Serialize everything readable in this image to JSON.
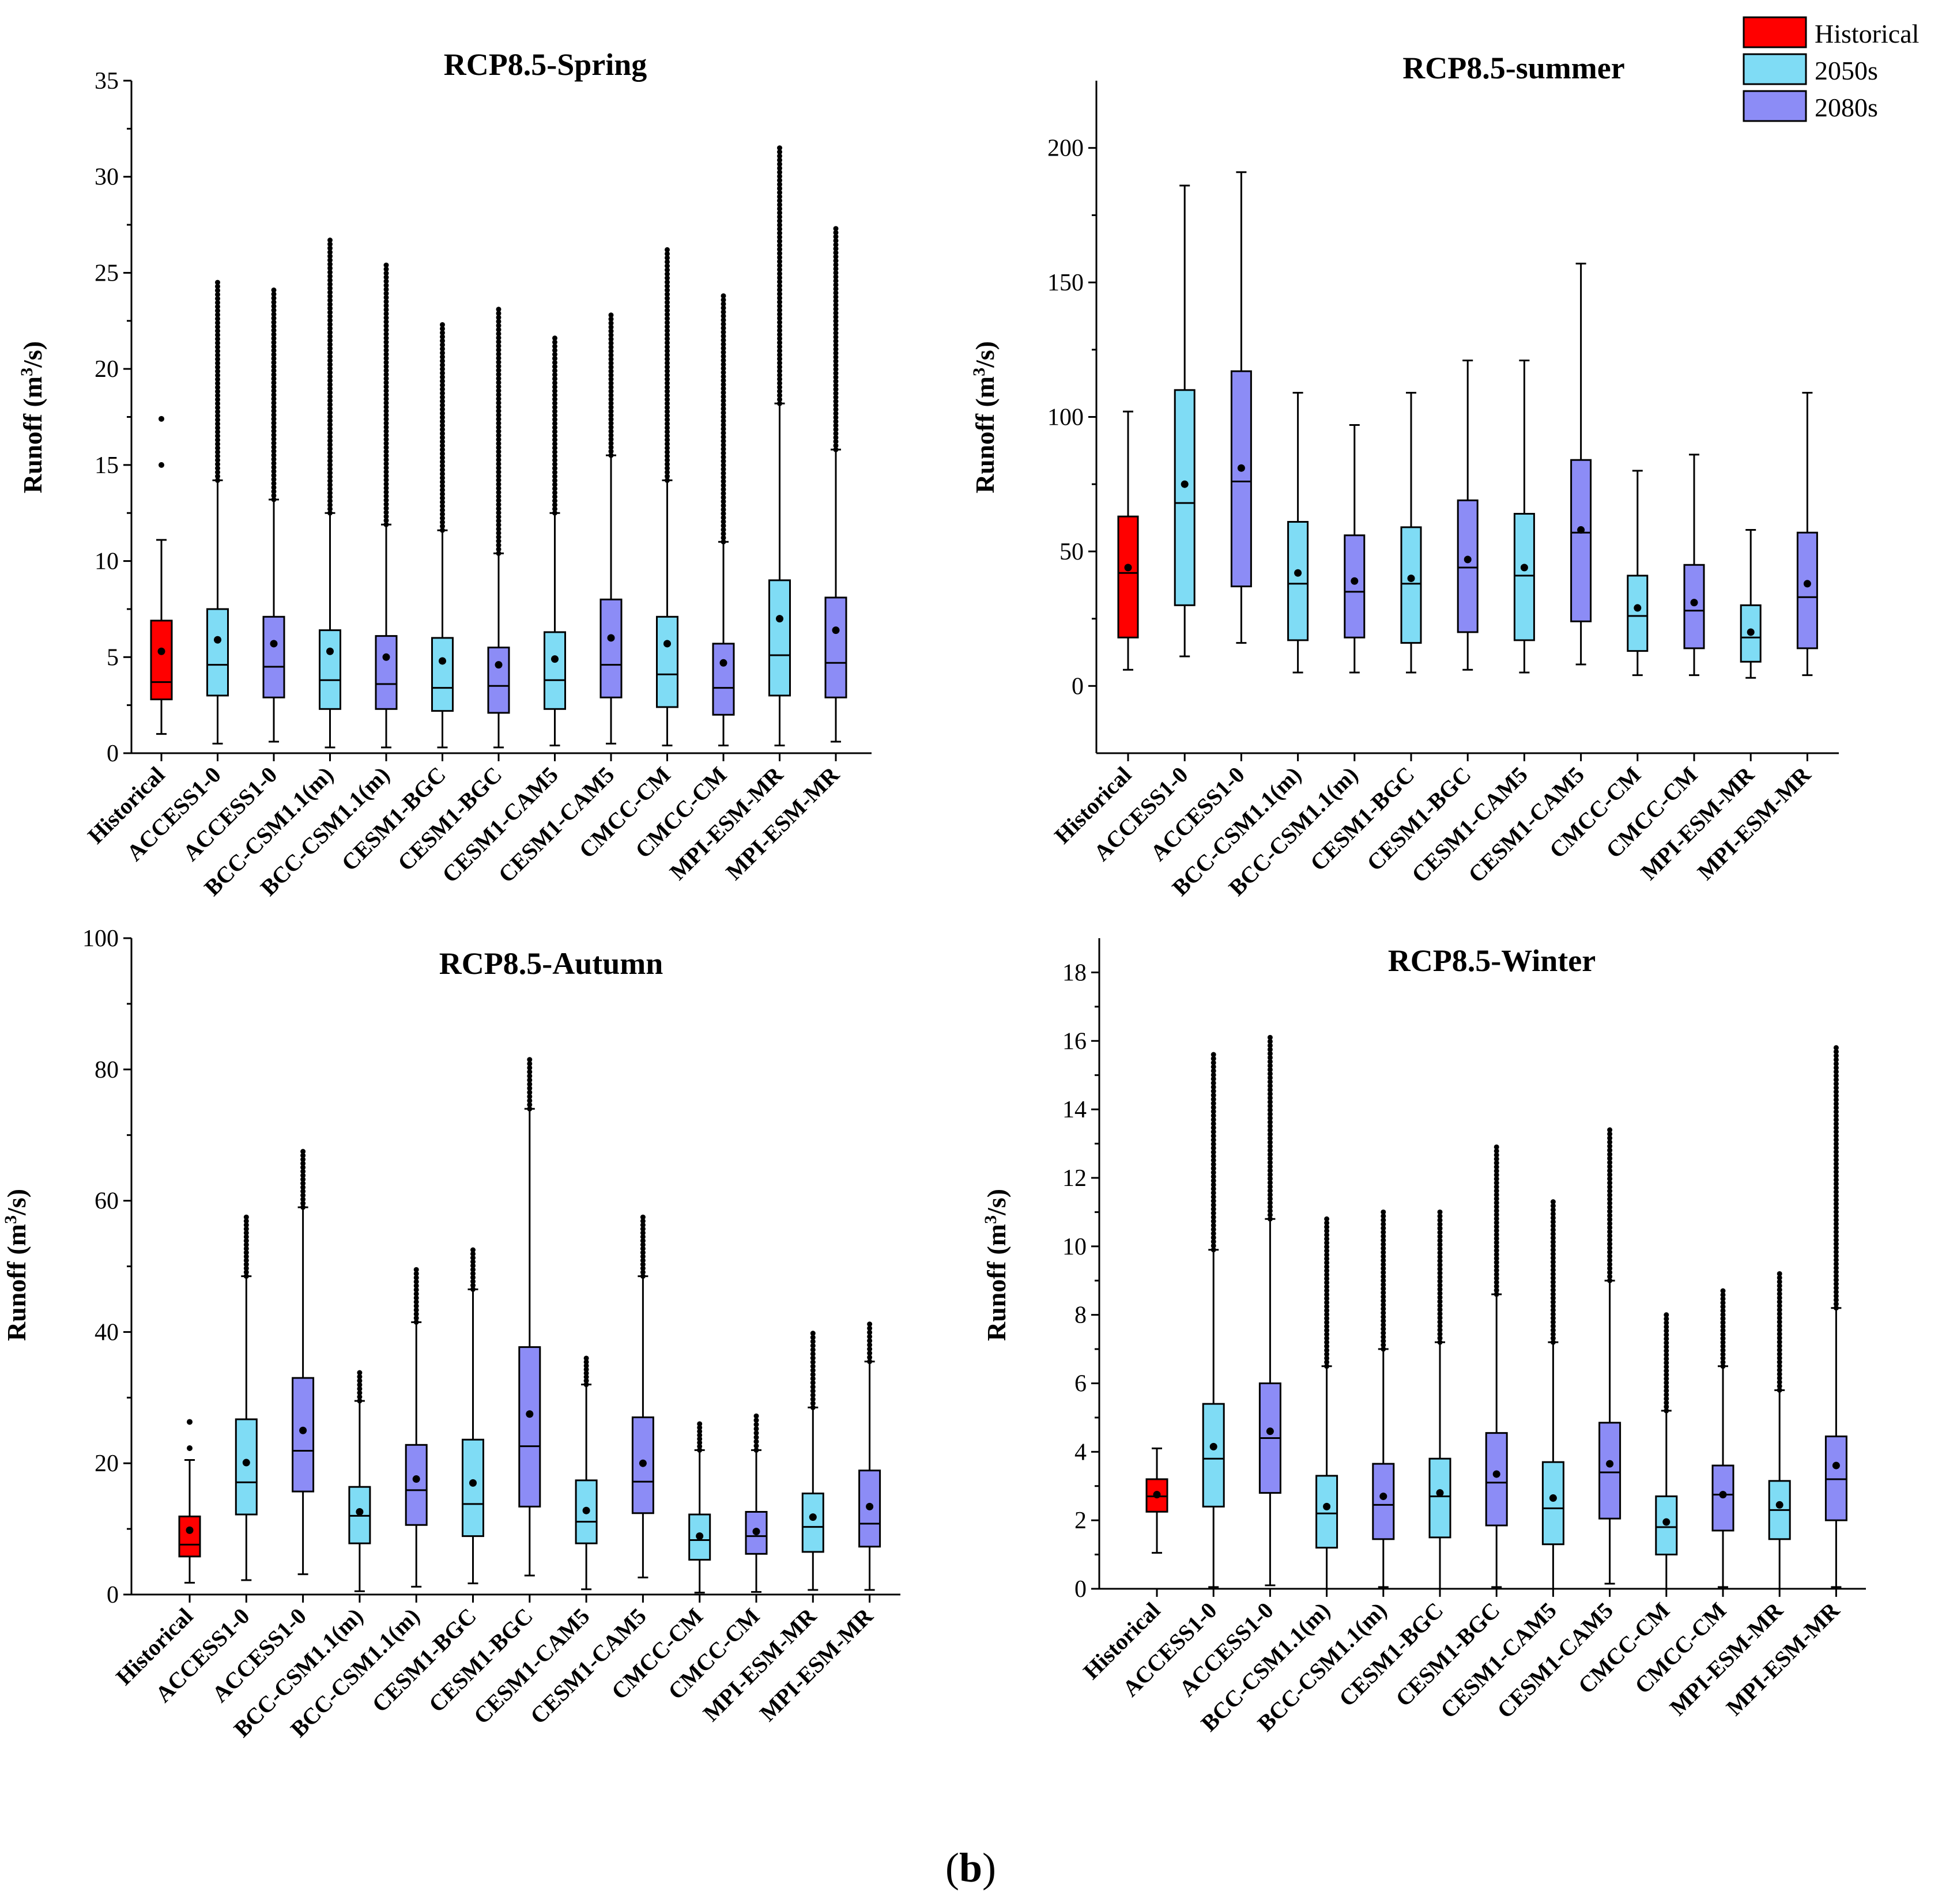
{
  "legend": {
    "items": [
      {
        "label": "Historical",
        "color": "#ff0000"
      },
      {
        "label": "2050s",
        "color": "#7fdcf5"
      },
      {
        "label": "2080s",
        "color": "#8c8cf6"
      }
    ]
  },
  "caption": {
    "prefix": "(",
    "letter": "b",
    "suffix": ")"
  },
  "chart_data": [
    {
      "type": "box",
      "title": "RCP8.5-Spring",
      "ylabel_main": "Runoff (m",
      "ylabel_sup": "3",
      "ylabel_tail": "/s)",
      "ylim": [
        0,
        35
      ],
      "yticks": [
        0,
        5,
        10,
        15,
        20,
        25,
        30,
        35
      ],
      "categories": [
        "Historical",
        "ACCESS1-0",
        "ACCESS1-0",
        "BCC-CSM1.1(m)",
        "BCC-CSM1.1(m)",
        "CESM1-BGC",
        "CESM1-BGC",
        "CESM1-CAM5",
        "CESM1-CAM5",
        "CMCC-CM",
        "CMCC-CM",
        "MPI-ESM-MR",
        "MPI-ESM-MR"
      ],
      "groups": [
        "Historical",
        "2050s",
        "2080s",
        "2050s",
        "2080s",
        "2050s",
        "2080s",
        "2050s",
        "2080s",
        "2050s",
        "2080s",
        "2050s",
        "2080s"
      ],
      "boxes": [
        {
          "min": 1.0,
          "q1": 2.8,
          "median": 3.7,
          "q3": 6.9,
          "max": 11.1,
          "mean": 5.3,
          "outliers": [
            15.0,
            17.4
          ]
        },
        {
          "min": 0.5,
          "q1": 3.0,
          "median": 4.6,
          "q3": 7.5,
          "max": 14.2,
          "mean": 5.9,
          "outlier_range": [
            14.2,
            24.5
          ]
        },
        {
          "min": 0.6,
          "q1": 2.9,
          "median": 4.5,
          "q3": 7.1,
          "max": 13.2,
          "mean": 5.7,
          "outlier_range": [
            13.2,
            24.1
          ]
        },
        {
          "min": 0.3,
          "q1": 2.3,
          "median": 3.8,
          "q3": 6.4,
          "max": 12.5,
          "mean": 5.3,
          "outlier_range": [
            12.5,
            26.7
          ]
        },
        {
          "min": 0.3,
          "q1": 2.3,
          "median": 3.6,
          "q3": 6.1,
          "max": 11.9,
          "mean": 5.0,
          "outlier_range": [
            11.9,
            25.4
          ]
        },
        {
          "min": 0.3,
          "q1": 2.2,
          "median": 3.4,
          "q3": 6.0,
          "max": 11.6,
          "mean": 4.8,
          "outlier_range": [
            11.6,
            22.3
          ]
        },
        {
          "min": 0.3,
          "q1": 2.1,
          "median": 3.5,
          "q3": 5.5,
          "max": 10.4,
          "mean": 4.6,
          "outlier_range": [
            10.4,
            23.1
          ]
        },
        {
          "min": 0.4,
          "q1": 2.3,
          "median": 3.8,
          "q3": 6.3,
          "max": 12.5,
          "mean": 4.9,
          "outlier_range": [
            12.5,
            21.6
          ]
        },
        {
          "min": 0.5,
          "q1": 2.9,
          "median": 4.6,
          "q3": 8.0,
          "max": 15.5,
          "mean": 6.0,
          "outlier_range": [
            15.5,
            22.8
          ]
        },
        {
          "min": 0.4,
          "q1": 2.4,
          "median": 4.1,
          "q3": 7.1,
          "max": 14.2,
          "mean": 5.7,
          "outlier_range": [
            14.2,
            26.2
          ]
        },
        {
          "min": 0.4,
          "q1": 2.0,
          "median": 3.4,
          "q3": 5.7,
          "max": 11.0,
          "mean": 4.7,
          "outlier_range": [
            11.0,
            23.8
          ]
        },
        {
          "min": 0.4,
          "q1": 3.0,
          "median": 5.1,
          "q3": 9.0,
          "max": 18.2,
          "mean": 7.0,
          "outlier_range": [
            18.2,
            31.5
          ]
        },
        {
          "min": 0.6,
          "q1": 2.9,
          "median": 4.7,
          "q3": 8.1,
          "max": 15.8,
          "mean": 6.4,
          "outlier_range": [
            15.8,
            27.3
          ]
        }
      ]
    },
    {
      "type": "box",
      "title": "RCP8.5-summer",
      "ylabel_main": "Runoff (m",
      "ylabel_sup": "3",
      "ylabel_tail": "/s)",
      "ylim": [
        -25,
        225
      ],
      "yticks": [
        0,
        50,
        100,
        150,
        200
      ],
      "categories": [
        "Historical",
        "ACCESS1-0",
        "ACCESS1-0",
        "BCC-CSM1.1(m)",
        "BCC-CSM1.1(m)",
        "CESM1-BGC",
        "CESM1-BGC",
        "CESM1-CAM5",
        "CESM1-CAM5",
        "CMCC-CM",
        "CMCC-CM",
        "MPI-ESM-MR",
        "MPI-ESM-MR"
      ],
      "groups": [
        "Historical",
        "2050s",
        "2080s",
        "2050s",
        "2080s",
        "2050s",
        "2080s",
        "2050s",
        "2080s",
        "2050s",
        "2080s",
        "2050s",
        "2080s"
      ],
      "boxes": [
        {
          "min": 6,
          "q1": 18,
          "median": 42,
          "q3": 63,
          "max": 102,
          "mean": 44
        },
        {
          "min": 11,
          "q1": 30,
          "median": 68,
          "q3": 110,
          "max": 186,
          "mean": 75
        },
        {
          "min": 16,
          "q1": 37,
          "median": 76,
          "q3": 117,
          "max": 191,
          "mean": 81
        },
        {
          "min": 5,
          "q1": 17,
          "median": 38,
          "q3": 61,
          "max": 109,
          "mean": 42
        },
        {
          "min": 5,
          "q1": 18,
          "median": 35,
          "q3": 56,
          "max": 97,
          "mean": 39
        },
        {
          "min": 5,
          "q1": 16,
          "median": 38,
          "q3": 59,
          "max": 109,
          "mean": 40
        },
        {
          "min": 6,
          "q1": 20,
          "median": 44,
          "q3": 69,
          "max": 121,
          "mean": 47
        },
        {
          "min": 5,
          "q1": 17,
          "median": 41,
          "q3": 64,
          "max": 121,
          "mean": 44
        },
        {
          "min": 8,
          "q1": 24,
          "median": 57,
          "q3": 84,
          "max": 157,
          "mean": 58
        },
        {
          "min": 4,
          "q1": 13,
          "median": 26,
          "q3": 41,
          "max": 80,
          "mean": 29
        },
        {
          "min": 4,
          "q1": 14,
          "median": 28,
          "q3": 45,
          "max": 86,
          "mean": 31
        },
        {
          "min": 3,
          "q1": 9,
          "median": 18,
          "q3": 30,
          "max": 58,
          "mean": 20
        },
        {
          "min": 4,
          "q1": 14,
          "median": 33,
          "q3": 57,
          "max": 109,
          "mean": 38
        }
      ]
    },
    {
      "type": "box",
      "title": "RCP8.5-Autumn",
      "ylabel_main": "Runoff (m",
      "ylabel_sup": "3",
      "ylabel_tail": "/s)",
      "ylim": [
        0,
        100
      ],
      "yticks": [
        0,
        20,
        40,
        60,
        80,
        100
      ],
      "categories": [
        "Historical",
        "ACCESS1-0",
        "ACCESS1-0",
        "BCC-CSM1.1(m)",
        "BCC-CSM1.1(m)",
        "CESM1-BGC",
        "CESM1-BGC",
        "CESM1-CAM5",
        "CESM1-CAM5",
        "CMCC-CM",
        "CMCC-CM",
        "MPI-ESM-MR",
        "MPI-ESM-MR"
      ],
      "groups": [
        "Historical",
        "2050s",
        "2080s",
        "2050s",
        "2080s",
        "2050s",
        "2080s",
        "2050s",
        "2080s",
        "2050s",
        "2080s",
        "2050s",
        "2080s"
      ],
      "boxes": [
        {
          "min": 1.8,
          "q1": 5.8,
          "median": 7.6,
          "q3": 11.9,
          "max": 20.5,
          "mean": 9.8,
          "outliers": [
            22.3,
            26.3
          ]
        },
        {
          "min": 2.2,
          "q1": 12.2,
          "median": 17.1,
          "q3": 26.7,
          "max": 48.5,
          "mean": 20.1,
          "outlier_range": [
            48.5,
            57.5
          ]
        },
        {
          "min": 3.1,
          "q1": 15.7,
          "median": 21.9,
          "q3": 33.0,
          "max": 59.0,
          "mean": 25.0,
          "outlier_range": [
            59.0,
            67.5
          ]
        },
        {
          "min": 0.5,
          "q1": 7.8,
          "median": 12.0,
          "q3": 16.4,
          "max": 29.5,
          "mean": 12.6,
          "outlier_range": [
            29.5,
            33.8
          ]
        },
        {
          "min": 1.2,
          "q1": 10.6,
          "median": 15.9,
          "q3": 22.8,
          "max": 41.5,
          "mean": 17.6,
          "outlier_range": [
            41.5,
            49.5
          ]
        },
        {
          "min": 1.7,
          "q1": 8.9,
          "median": 13.8,
          "q3": 23.6,
          "max": 46.5,
          "mean": 17.0,
          "outlier_range": [
            46.5,
            52.5
          ]
        },
        {
          "min": 2.9,
          "q1": 13.4,
          "median": 22.6,
          "q3": 37.7,
          "max": 74.0,
          "mean": 27.5,
          "outlier_range": [
            74.0,
            81.5
          ]
        },
        {
          "min": 0.8,
          "q1": 7.8,
          "median": 11.1,
          "q3": 17.4,
          "max": 32.0,
          "mean": 12.8,
          "outlier_range": [
            32.0,
            36.0
          ]
        },
        {
          "min": 2.6,
          "q1": 12.4,
          "median": 17.2,
          "q3": 27.0,
          "max": 48.5,
          "mean": 20.0,
          "outlier_range": [
            48.5,
            57.5
          ]
        },
        {
          "min": 0.3,
          "q1": 5.3,
          "median": 8.3,
          "q3": 12.2,
          "max": 22.0,
          "mean": 8.9,
          "outlier_range": [
            22.0,
            26.0
          ]
        },
        {
          "min": 0.4,
          "q1": 6.2,
          "median": 8.9,
          "q3": 12.6,
          "max": 22.0,
          "mean": 9.6,
          "outlier_range": [
            22.0,
            27.2
          ]
        },
        {
          "min": 0.7,
          "q1": 6.5,
          "median": 10.3,
          "q3": 15.4,
          "max": 28.5,
          "mean": 11.8,
          "outlier_range": [
            28.5,
            39.8
          ]
        },
        {
          "min": 0.7,
          "q1": 7.3,
          "median": 10.8,
          "q3": 18.9,
          "max": 35.5,
          "mean": 13.4,
          "outlier_range": [
            35.5,
            41.2
          ]
        }
      ]
    },
    {
      "type": "box",
      "title": "RCP8.5-Winter",
      "ylabel_main": "Runoff (m",
      "ylabel_sup": "3",
      "ylabel_tail": "/s)",
      "ylim": [
        0,
        19
      ],
      "yticks": [
        0,
        2,
        4,
        6,
        8,
        10,
        12,
        14,
        16,
        18
      ],
      "categories": [
        "Historical",
        "ACCESS1-0",
        "ACCESS1-0",
        "BCC-CSM1.1(m)",
        "BCC-CSM1.1(m)",
        "CESM1-BGC",
        "CESM1-BGC",
        "CESM1-CAM5",
        "CESM1-CAM5",
        "CMCC-CM",
        "CMCC-CM",
        "MPI-ESM-MR",
        "MPI-ESM-MR"
      ],
      "groups": [
        "Historical",
        "2050s",
        "2080s",
        "2050s",
        "2080s",
        "2050s",
        "2080s",
        "2050s",
        "2080s",
        "2050s",
        "2080s",
        "2050s",
        "2080s"
      ],
      "boxes": [
        {
          "min": 1.05,
          "q1": 2.25,
          "median": 2.7,
          "q3": 3.2,
          "max": 4.1,
          "mean": 2.75
        },
        {
          "min": 0.05,
          "q1": 2.4,
          "median": 3.8,
          "q3": 5.4,
          "max": 9.9,
          "mean": 4.15,
          "outlier_range": [
            9.9,
            15.6
          ]
        },
        {
          "min": 0.1,
          "q1": 2.8,
          "median": 4.4,
          "q3": 6.0,
          "max": 10.8,
          "mean": 4.6,
          "outlier_range": [
            10.8,
            16.1
          ]
        },
        {
          "min": 0.0,
          "q1": 1.2,
          "median": 2.2,
          "q3": 3.3,
          "max": 6.5,
          "mean": 2.4,
          "outlier_range": [
            6.5,
            10.8
          ]
        },
        {
          "min": 0.05,
          "q1": 1.45,
          "median": 2.45,
          "q3": 3.65,
          "max": 7.0,
          "mean": 2.7,
          "outlier_range": [
            7.0,
            11.0
          ]
        },
        {
          "min": 0.0,
          "q1": 1.5,
          "median": 2.7,
          "q3": 3.8,
          "max": 7.2,
          "mean": 2.8,
          "outlier_range": [
            7.2,
            11.0
          ]
        },
        {
          "min": 0.05,
          "q1": 1.85,
          "median": 3.1,
          "q3": 4.55,
          "max": 8.6,
          "mean": 3.35,
          "outlier_range": [
            8.6,
            12.9
          ]
        },
        {
          "min": 0.0,
          "q1": 1.3,
          "median": 2.35,
          "q3": 3.7,
          "max": 7.2,
          "mean": 2.65,
          "outlier_range": [
            7.2,
            11.3
          ]
        },
        {
          "min": 0.15,
          "q1": 2.05,
          "median": 3.4,
          "q3": 4.85,
          "max": 9.0,
          "mean": 3.65,
          "outlier_range": [
            9.0,
            13.4
          ]
        },
        {
          "min": 0.0,
          "q1": 1.0,
          "median": 1.8,
          "q3": 2.7,
          "max": 5.2,
          "mean": 1.95,
          "outlier_range": [
            5.2,
            8.0
          ]
        },
        {
          "min": 0.05,
          "q1": 1.7,
          "median": 2.75,
          "q3": 3.6,
          "max": 6.5,
          "mean": 2.75,
          "outlier_range": [
            6.5,
            8.7
          ]
        },
        {
          "min": 0.0,
          "q1": 1.45,
          "median": 2.3,
          "q3": 3.15,
          "max": 5.8,
          "mean": 2.45,
          "outlier_range": [
            5.8,
            9.2
          ]
        },
        {
          "min": 0.05,
          "q1": 2.0,
          "median": 3.2,
          "q3": 4.45,
          "max": 8.2,
          "mean": 3.6,
          "outlier_range": [
            8.2,
            15.8
          ]
        }
      ]
    }
  ]
}
